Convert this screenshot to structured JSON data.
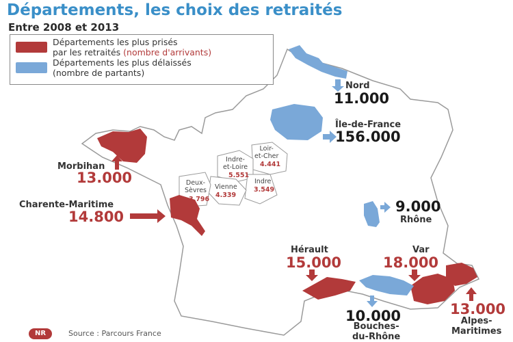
{
  "title": "Départements, les choix des retraités",
  "subtitle": "Entre 2008 et 2013",
  "legend": {
    "red_line1": "Départements les plus prisés",
    "red_line2_a": "par les retraités ",
    "red_line2_b": "(nombre d'arrivants)",
    "blue_line1": "Départements les plus délaissés",
    "blue_line2": "(nombre de partants)",
    "colors": {
      "arrivals": "#b23a3a",
      "departures": "#7aa8d8"
    }
  },
  "departments": {
    "nord": {
      "name": "Nord",
      "value": "11.000"
    },
    "idf": {
      "name": "Île-de-France",
      "value": "156.000"
    },
    "rhone": {
      "name": "Rhône",
      "value": "9.000"
    },
    "morbihan": {
      "name": "Morbihan",
      "value": "13.000"
    },
    "charente": {
      "name": "Charente-Maritime",
      "value": "14.800"
    },
    "herault": {
      "name": "Hérault",
      "value": "15.000"
    },
    "var": {
      "name": "Var",
      "value": "18.000"
    },
    "bdr": {
      "name_l1": "Bouches-",
      "name_l2": "du-Rhône",
      "value": "10.000"
    },
    "alpes": {
      "name_l1": "Alpes-",
      "name_l2": "Maritimes",
      "value": "13.000"
    }
  },
  "small": {
    "loir": {
      "name_l1": "Loir-",
      "name_l2": "et-Cher",
      "value": "4.441"
    },
    "indre_loire": {
      "name_l1": "Indre-",
      "name_l2": "et-Loire",
      "value": "5.551"
    },
    "indre": {
      "name": "Indre",
      "value": "3.549"
    },
    "vienne": {
      "name": "Vienne",
      "value": "4.339"
    },
    "deux_sevres": {
      "name_l1": "Deux-",
      "name_l2": "Sèvres",
      "value": "3.796"
    }
  },
  "source": "Source : Parcours France",
  "logo": "NR"
}
